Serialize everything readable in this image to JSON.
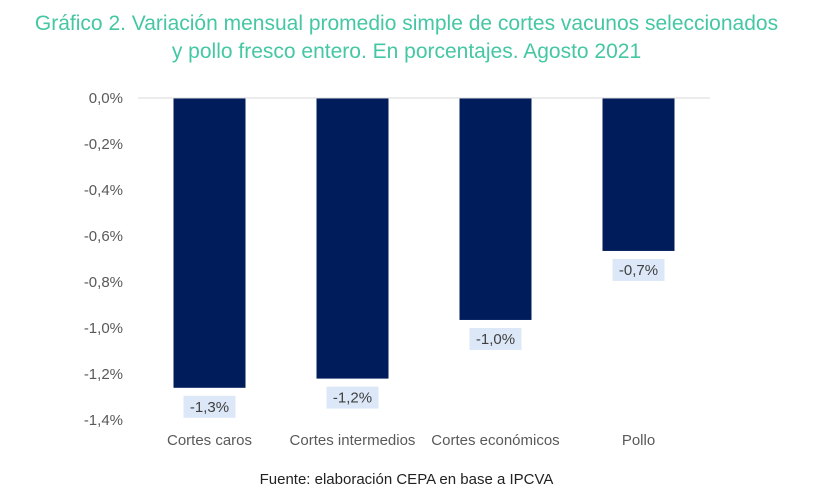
{
  "chart_data": {
    "type": "bar",
    "title_lines": [
      "Gráfico 2. Variación mensual promedio simple de cortes vacunos seleccionados",
      "y pollo fresco entero. En porcentajes. Agosto 2021"
    ],
    "categories": [
      "Cortes caros",
      "Cortes intermedios",
      "Cortes económicos",
      "Pollo"
    ],
    "values": [
      -1.26,
      -1.22,
      -0.965,
      -0.665
    ],
    "data_labels": [
      "-1,3%",
      "-1,2%",
      "-1,0%",
      "-0,7%"
    ],
    "y_ticks": [
      0,
      -0.2,
      -0.4,
      -0.6,
      -0.8,
      -1.0,
      -1.2,
      -1.4
    ],
    "y_tick_labels": [
      "0,0%",
      "-0,2%",
      "-0,4%",
      "-0,6%",
      "-0,8%",
      "-1,0%",
      "-1,2%",
      "-1,4%"
    ],
    "ylim": [
      -1.4,
      0
    ],
    "xlabel": "",
    "ylabel": "",
    "grid": false,
    "legend": "none"
  },
  "colors": {
    "title": "#45C7A3",
    "bar": "#001C5B",
    "label_bg": "#DCE8F8",
    "axis": "#D9D9D9",
    "tick_text": "#595959"
  },
  "footer": "Fuente: elaboración CEPA en base a IPCVA"
}
